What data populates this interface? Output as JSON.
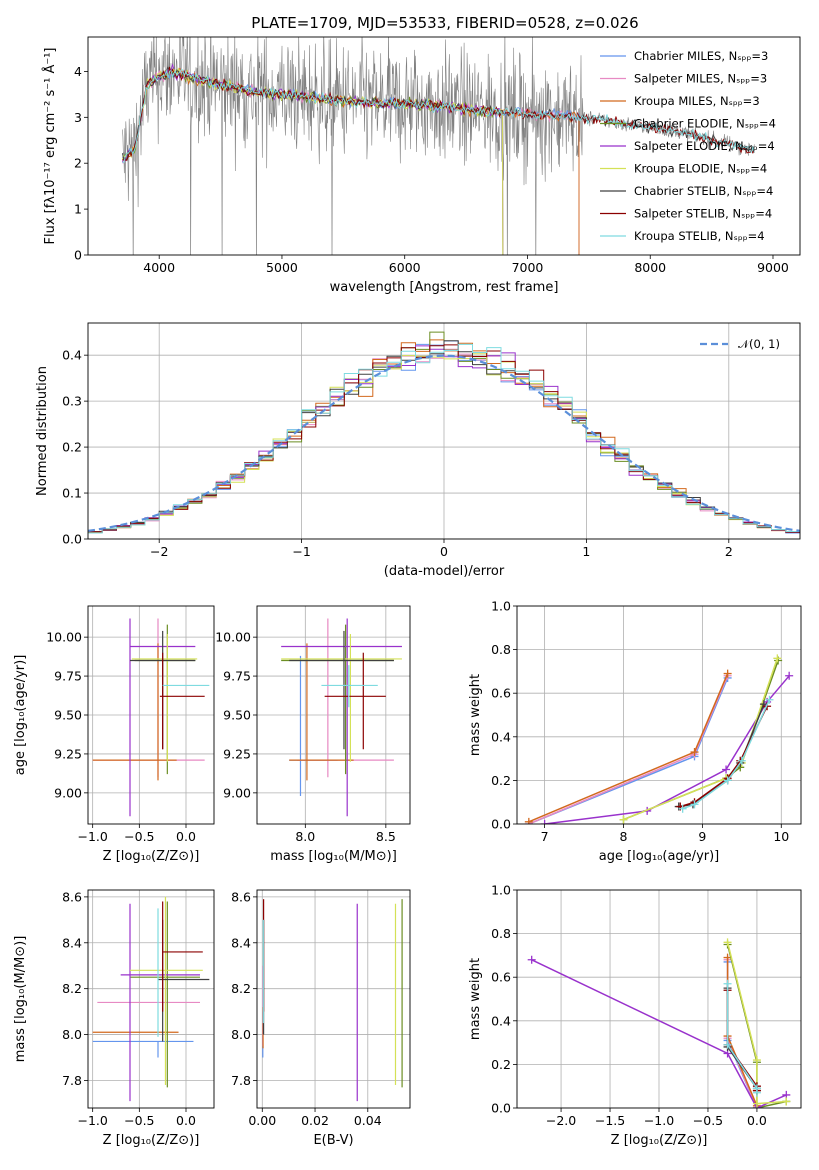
{
  "figure": {
    "title": "PLATE=1709, MJD=53533, FIBERID=0528, z=0.026"
  },
  "colors": {
    "Chabrier MILES": "#6495ed",
    "Salpeter MILES": "#e78ac3",
    "Kroupa MILES": "#d2691e",
    "Chabrier ELODIE": "#6b8e23",
    "Salpeter ELODIE": "#9932cc",
    "Kroupa ELODIE": "#d4e157",
    "Chabrier STELIB": "#404040",
    "Salpeter STELIB": "#8b0000",
    "Kroupa STELIB": "#7fdbe0",
    "data": "#808080",
    "normal": "#5b8fd9"
  },
  "chart_data": [
    {
      "id": "spectrum",
      "type": "line",
      "title": "PLATE=1709, MJD=53533, FIBERID=0528, z=0.026",
      "xlabel": "wavelength [Angstrom, rest frame]",
      "ylabel": "Flux [fλ10⁻¹⁷ erg cm⁻² s⁻¹ Å⁻¹]",
      "xlim": [
        3420,
        9220
      ],
      "ylim": [
        0,
        4.75
      ],
      "xticks": [
        4000,
        5000,
        6000,
        7000,
        8000,
        9000
      ],
      "yticks": [
        0,
        1,
        2,
        3,
        4
      ],
      "legend_position": "top-right",
      "legend": [
        "Chabrier MILES, Nₛₚₚ=3",
        "Salpeter MILES, Nₛₚₚ=3",
        "Kroupa MILES, Nₛₚₚ=3",
        "Chabrier ELODIE, Nₛₚₚ=4",
        "Salpeter ELODIE, Nₛₚₚ=4",
        "Kroupa ELODIE, Nₛₚₚ=4",
        "Chabrier STELIB, Nₛₚₚ=4",
        "Salpeter STELIB, Nₛₚₚ=4",
        "Kroupa STELIB, Nₛₚₚ=4"
      ],
      "model_series": [
        "Chabrier MILES",
        "Salpeter MILES",
        "Kroupa MILES",
        "Chabrier ELODIE",
        "Salpeter ELODIE",
        "Kroupa ELODIE",
        "Chabrier STELIB",
        "Salpeter STELIB",
        "Kroupa STELIB"
      ],
      "continuum": {
        "x": [
          3700,
          3800,
          3900,
          4000,
          4100,
          4300,
          4500,
          4800,
          5000,
          5200,
          5500,
          5800,
          6000,
          6300,
          6600,
          6900,
          7200,
          7400,
          7600,
          7800,
          8000,
          8300,
          8600,
          8800,
          9000
        ],
        "y": [
          2.1,
          2.3,
          3.7,
          3.9,
          4.0,
          3.85,
          3.7,
          3.55,
          3.5,
          3.45,
          3.35,
          3.3,
          3.3,
          3.25,
          3.15,
          3.1,
          3.05,
          3.0,
          2.95,
          2.85,
          2.8,
          2.65,
          2.45,
          2.3,
          2.2
        ]
      },
      "data_spectrum": {
        "wavelength_range": [
          3700,
          8850
        ],
        "noise_high": 1.4,
        "noise_low": 0.3
      }
    },
    {
      "id": "residuals",
      "type": "line",
      "xlabel": "(data-model)/error",
      "ylabel": "Normed distribution",
      "xlim": [
        -2.5,
        2.5
      ],
      "ylim": [
        0,
        0.47
      ],
      "xticks": [
        -2,
        -1,
        0,
        1,
        2
      ],
      "yticks": [
        0,
        0.1,
        0.2,
        0.3,
        0.4
      ],
      "legend_position": "top-right",
      "legend": [
        "𝒩(0, 1)"
      ],
      "bin_width": 0.1
    },
    {
      "id": "age-vs-Z",
      "type": "scatter",
      "xlabel": "Z [log₁₀(Z/Z⊙)]",
      "ylabel": "age  [log₁₀(age/yr)]",
      "xlim": [
        -1.05,
        0.3
      ],
      "ylim": [
        8.8,
        10.2
      ],
      "xticks": [
        -1.0,
        -0.5,
        0.0
      ],
      "yticks": [
        9.0,
        9.25,
        9.5,
        9.75,
        10.0
      ],
      "points": [
        {
          "s": "Chabrier MILES",
          "x": -0.3,
          "y": 9.21,
          "xlo": -0.3,
          "xhi": -0.3,
          "ylo": 9.21,
          "yhi": 9.21
        },
        {
          "s": "Salpeter MILES",
          "x": -0.3,
          "y": 9.21,
          "xlo": -1.0,
          "xhi": 0.2,
          "ylo": 9.1,
          "yhi": 10.12
        },
        {
          "s": "Kroupa MILES",
          "x": -0.3,
          "y": 9.21,
          "xlo": -1.0,
          "xhi": -0.1,
          "ylo": 9.08,
          "yhi": 9.96
        },
        {
          "s": "Chabrier ELODIE",
          "x": -0.2,
          "y": 9.85,
          "xlo": -0.55,
          "xhi": 0.1,
          "ylo": 9.12,
          "yhi": 10.08
        },
        {
          "s": "Salpeter ELODIE",
          "x": -0.6,
          "y": 9.94,
          "xlo": -0.6,
          "xhi": 0.1,
          "ylo": 8.85,
          "yhi": 10.12
        },
        {
          "s": "Kroupa ELODIE",
          "x": -0.2,
          "y": 9.86,
          "xlo": -0.58,
          "xhi": 0.12,
          "ylo": 9.2,
          "yhi": 10.02
        },
        {
          "s": "Chabrier STELIB",
          "x": -0.25,
          "y": 9.85,
          "xlo": -0.6,
          "xhi": 0.1,
          "ylo": 9.28,
          "yhi": 10.04
        },
        {
          "s": "Salpeter STELIB",
          "x": -0.25,
          "y": 9.62,
          "xlo": -0.28,
          "xhi": 0.2,
          "ylo": 9.28,
          "yhi": 9.9
        },
        {
          "s": "Kroupa STELIB",
          "x": 0.0,
          "y": 9.69,
          "xlo": -0.25,
          "xhi": 0.25,
          "ylo": 9.69,
          "yhi": 9.69
        }
      ]
    },
    {
      "id": "age-vs-mass",
      "type": "scatter",
      "xlabel": "mass [log₁₀(M/M⊙)]",
      "ylabel": "",
      "xlim": [
        7.7,
        8.65
      ],
      "ylim": [
        8.8,
        10.2
      ],
      "xticks": [
        8.0,
        8.5
      ],
      "yticks": [
        9.0,
        9.25,
        9.5,
        9.75,
        10.0
      ],
      "points": [
        {
          "s": "Chabrier MILES",
          "x": 7.97,
          "y": 9.21,
          "xlo": 7.9,
          "xhi": 8.2,
          "ylo": 8.98,
          "yhi": 9.88
        },
        {
          "s": "Salpeter MILES",
          "x": 8.14,
          "y": 9.21,
          "xlo": 7.95,
          "xhi": 8.55,
          "ylo": 9.1,
          "yhi": 10.12
        },
        {
          "s": "Kroupa MILES",
          "x": 8.01,
          "y": 9.21,
          "xlo": 7.9,
          "xhi": 8.3,
          "ylo": 9.08,
          "yhi": 9.96
        },
        {
          "s": "Chabrier ELODIE",
          "x": 8.25,
          "y": 9.85,
          "xlo": 7.85,
          "xhi": 8.55,
          "ylo": 9.12,
          "yhi": 10.08
        },
        {
          "s": "Salpeter ELODIE",
          "x": 8.26,
          "y": 9.94,
          "xlo": 7.85,
          "xhi": 8.6,
          "ylo": 8.85,
          "yhi": 10.12
        },
        {
          "s": "Kroupa ELODIE",
          "x": 8.28,
          "y": 9.86,
          "xlo": 7.85,
          "xhi": 8.6,
          "ylo": 9.2,
          "yhi": 10.02
        },
        {
          "s": "Chabrier STELIB",
          "x": 8.24,
          "y": 9.85,
          "xlo": 7.9,
          "xhi": 8.55,
          "ylo": 9.28,
          "yhi": 10.04
        },
        {
          "s": "Salpeter STELIB",
          "x": 8.36,
          "y": 9.62,
          "xlo": 8.12,
          "xhi": 8.5,
          "ylo": 9.28,
          "yhi": 9.9
        },
        {
          "s": "Kroupa STELIB",
          "x": 8.27,
          "y": 9.69,
          "xlo": 8.1,
          "xhi": 8.45,
          "ylo": 9.55,
          "yhi": 9.82
        }
      ]
    },
    {
      "id": "mass-weight-vs-age",
      "type": "line",
      "xlabel": "age  [log₁₀(age/yr)]",
      "ylabel": "mass weight",
      "xlim": [
        6.65,
        10.25
      ],
      "ylim": [
        0,
        1.0
      ],
      "xticks": [
        7,
        8,
        9,
        10
      ],
      "yticks": [
        0.0,
        0.2,
        0.4,
        0.6,
        0.8,
        1.0
      ],
      "series": [
        {
          "name": "Chabrier MILES",
          "x": [
            6.8,
            8.9,
            9.32
          ],
          "y": [
            0.0,
            0.31,
            0.67
          ]
        },
        {
          "name": "Salpeter MILES",
          "x": [
            6.8,
            8.9,
            9.32
          ],
          "y": [
            0.0,
            0.32,
            0.68
          ]
        },
        {
          "name": "Kroupa MILES",
          "x": [
            6.8,
            8.9,
            9.32
          ],
          "y": [
            0.01,
            0.33,
            0.69
          ]
        },
        {
          "name": "Chabrier ELODIE",
          "x": [
            8.0,
            9.3,
            9.48,
            9.96
          ],
          "y": [
            0.02,
            0.21,
            0.26,
            0.75
          ]
        },
        {
          "name": "Salpeter ELODIE",
          "x": [
            7.0,
            8.3,
            9.3,
            9.82,
            10.1
          ],
          "y": [
            0.0,
            0.06,
            0.25,
            0.56,
            0.68
          ]
        },
        {
          "name": "Kroupa ELODIE",
          "x": [
            8.0,
            9.3,
            9.5,
            9.95
          ],
          "y": [
            0.02,
            0.21,
            0.28,
            0.76
          ]
        },
        {
          "name": "Chabrier STELIB",
          "x": [
            8.7,
            8.88,
            9.32,
            9.48,
            9.78
          ],
          "y": [
            0.08,
            0.09,
            0.2,
            0.28,
            0.55
          ]
        },
        {
          "name": "Salpeter STELIB",
          "x": [
            8.72,
            8.9,
            9.32,
            9.48,
            9.82
          ],
          "y": [
            0.08,
            0.1,
            0.21,
            0.29,
            0.54
          ]
        },
        {
          "name": "Kroupa STELIB",
          "x": [
            8.75,
            8.9,
            9.32,
            9.5,
            9.85
          ],
          "y": [
            0.07,
            0.09,
            0.2,
            0.29,
            0.57
          ]
        }
      ]
    },
    {
      "id": "mass-vs-Z",
      "type": "scatter",
      "xlabel": "Z [log₁₀(Z/Z⊙)]",
      "ylabel": "mass [log₁₀(M/M⊙)]",
      "xlim": [
        -1.05,
        0.3
      ],
      "ylim": [
        7.68,
        8.63
      ],
      "xticks": [
        -1.0,
        -0.5,
        0.0
      ],
      "yticks": [
        7.8,
        8.0,
        8.2,
        8.4,
        8.6
      ],
      "points": [
        {
          "s": "Chabrier MILES",
          "x": -0.3,
          "y": 7.97,
          "xlo": -1.0,
          "xhi": 0.08,
          "ylo": 7.9,
          "yhi": 7.97
        },
        {
          "s": "Salpeter MILES",
          "x": -0.3,
          "y": 8.14,
          "xlo": -0.95,
          "xhi": 0.15,
          "ylo": 8.14,
          "yhi": 8.14
        },
        {
          "s": "Kroupa MILES",
          "x": -0.3,
          "y": 8.01,
          "xlo": -1.0,
          "xhi": -0.08,
          "ylo": 8.01,
          "yhi": 8.01
        },
        {
          "s": "Chabrier ELODIE",
          "x": -0.2,
          "y": 8.25,
          "xlo": -0.6,
          "xhi": 0.15,
          "ylo": 7.77,
          "yhi": 8.58
        },
        {
          "s": "Salpeter ELODIE",
          "x": -0.6,
          "y": 8.26,
          "xlo": -0.7,
          "xhi": 0.15,
          "ylo": 7.71,
          "yhi": 8.57
        },
        {
          "s": "Kroupa ELODIE",
          "x": -0.22,
          "y": 8.28,
          "xlo": -0.6,
          "xhi": 0.18,
          "ylo": 7.78,
          "yhi": 8.6
        },
        {
          "s": "Chabrier STELIB",
          "x": -0.25,
          "y": 8.24,
          "xlo": -0.3,
          "xhi": 0.25,
          "ylo": 7.97,
          "yhi": 8.5
        },
        {
          "s": "Salpeter STELIB",
          "x": -0.25,
          "y": 8.36,
          "xlo": -0.25,
          "xhi": 0.18,
          "ylo": 8.1,
          "yhi": 8.58
        },
        {
          "s": "Kroupa STELIB",
          "x": -0.3,
          "y": 8.27,
          "xlo": -0.3,
          "xhi": -0.3,
          "ylo": 7.99,
          "yhi": 8.55
        }
      ]
    },
    {
      "id": "mass-vs-ebv",
      "type": "scatter",
      "xlabel": "E(B-V)",
      "ylabel": "",
      "xlim": [
        -0.002,
        0.056
      ],
      "ylim": [
        7.68,
        8.63
      ],
      "xticks": [
        0.0,
        0.02,
        0.04
      ],
      "yticks": [
        7.8,
        8.0,
        8.2,
        8.4,
        8.6
      ],
      "points": [
        {
          "s": "Chabrier MILES",
          "x": 0.0002,
          "y": 7.97,
          "xlo": 0.0002,
          "xhi": 0.0002,
          "ylo": 7.9,
          "yhi": 8.1
        },
        {
          "s": "Salpeter MILES",
          "x": 0.0002,
          "y": 8.14,
          "xlo": 0.0002,
          "xhi": 0.0002,
          "ylo": 7.95,
          "yhi": 8.3
        },
        {
          "s": "Kroupa MILES",
          "x": 0.0003,
          "y": 8.01,
          "xlo": 0.0003,
          "xhi": 0.0003,
          "ylo": 7.94,
          "yhi": 8.12
        },
        {
          "s": "Chabrier ELODIE",
          "x": 0.053,
          "y": 8.25,
          "xlo": 0.053,
          "xhi": 0.053,
          "ylo": 7.77,
          "yhi": 8.59
        },
        {
          "s": "Salpeter ELODIE",
          "x": 0.036,
          "y": 8.26,
          "xlo": 0.036,
          "xhi": 0.036,
          "ylo": 7.71,
          "yhi": 8.57
        },
        {
          "s": "Kroupa ELODIE",
          "x": 0.0505,
          "y": 8.28,
          "xlo": 0.0505,
          "xhi": 0.0505,
          "ylo": 7.78,
          "yhi": 8.57
        },
        {
          "s": "Chabrier STELIB",
          "x": 0.0005,
          "y": 8.24,
          "xlo": 0.0005,
          "xhi": 0.0005,
          "ylo": 8.0,
          "yhi": 8.5
        },
        {
          "s": "Salpeter STELIB",
          "x": 0.0005,
          "y": 8.36,
          "xlo": 0.0005,
          "xhi": 0.0005,
          "ylo": 8.1,
          "yhi": 8.59
        },
        {
          "s": "Kroupa STELIB",
          "x": 0.0004,
          "y": 8.27,
          "xlo": 0.0004,
          "xhi": 0.0004,
          "ylo": 8.05,
          "yhi": 8.5
        }
      ]
    },
    {
      "id": "mass-weight-vs-Z",
      "type": "line",
      "xlabel": "Z [log₁₀(Z/Z⊙)]",
      "ylabel": "mass weight",
      "xlim": [
        -2.45,
        0.45
      ],
      "ylim": [
        0,
        1.0
      ],
      "xticks": [
        -2.0,
        -1.5,
        -1.0,
        -0.5,
        0.0
      ],
      "yticks": [
        0.0,
        0.2,
        0.4,
        0.6,
        0.8,
        1.0
      ],
      "series": [
        {
          "name": "Chabrier MILES",
          "x": [
            -0.3,
            -0.3,
            0.0
          ],
          "y": [
            0.67,
            0.31,
            0.0
          ]
        },
        {
          "name": "Salpeter MILES",
          "x": [
            -0.3,
            -0.3,
            0.0
          ],
          "y": [
            0.68,
            0.32,
            0.0
          ]
        },
        {
          "name": "Kroupa MILES",
          "x": [
            -0.3,
            -0.3,
            0.0
          ],
          "y": [
            0.69,
            0.33,
            0.01
          ]
        },
        {
          "name": "Chabrier ELODIE",
          "x": [
            -0.3,
            0.0,
            0.0,
            0.3
          ],
          "y": [
            0.75,
            0.21,
            0.0,
            0.03
          ]
        },
        {
          "name": "Salpeter ELODIE",
          "x": [
            -2.3,
            -0.3,
            0.0,
            0.3
          ],
          "y": [
            0.68,
            0.25,
            0.0,
            0.06
          ]
        },
        {
          "name": "Kroupa ELODIE",
          "x": [
            -0.3,
            0.0,
            0.0,
            0.3
          ],
          "y": [
            0.76,
            0.22,
            0.02,
            0.03
          ]
        },
        {
          "name": "Chabrier STELIB",
          "x": [
            -0.3,
            -0.3,
            0.0,
            0.0
          ],
          "y": [
            0.55,
            0.28,
            0.09,
            0.08
          ]
        },
        {
          "name": "Salpeter STELIB",
          "x": [
            -0.3,
            -0.3,
            0.0,
            0.0
          ],
          "y": [
            0.54,
            0.29,
            0.1,
            0.08
          ]
        },
        {
          "name": "Kroupa STELIB",
          "x": [
            -0.3,
            -0.3,
            0.0,
            0.0
          ],
          "y": [
            0.57,
            0.29,
            0.09,
            0.07
          ]
        }
      ]
    }
  ]
}
